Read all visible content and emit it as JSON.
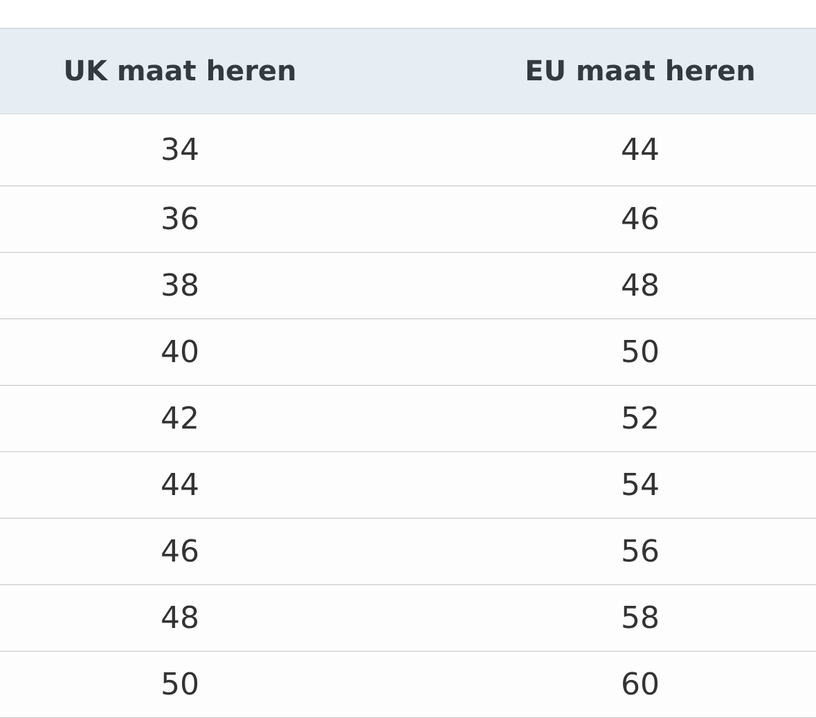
{
  "table": {
    "header": [
      "UK maat heren",
      "EU maat heren"
    ],
    "rows": [
      [
        "34",
        "44"
      ],
      [
        "36",
        "46"
      ],
      [
        "38",
        "48"
      ],
      [
        "40",
        "50"
      ],
      [
        "42",
        "52"
      ],
      [
        "44",
        "54"
      ],
      [
        "46",
        "56"
      ],
      [
        "48",
        "58"
      ],
      [
        "50",
        "60"
      ]
    ]
  }
}
